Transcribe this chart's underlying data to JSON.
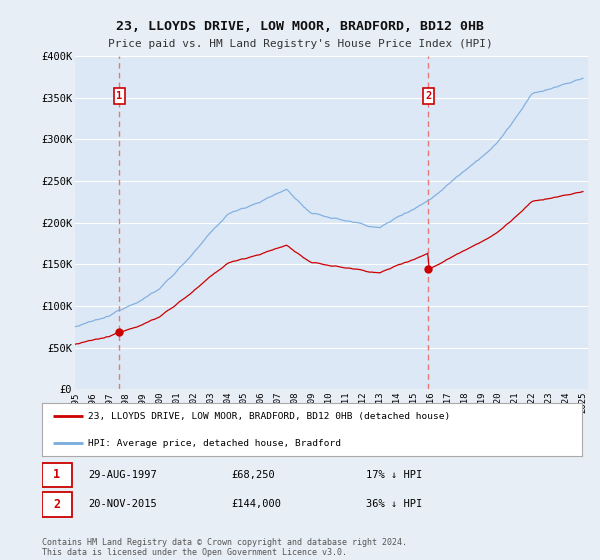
{
  "title": "23, LLOYDS DRIVE, LOW MOOR, BRADFORD, BD12 0HB",
  "subtitle": "Price paid vs. HM Land Registry's House Price Index (HPI)",
  "ylim": [
    0,
    400000
  ],
  "yticks": [
    0,
    50000,
    100000,
    150000,
    200000,
    250000,
    300000,
    350000,
    400000
  ],
  "ytick_labels": [
    "£0",
    "£50K",
    "£100K",
    "£150K",
    "£200K",
    "£250K",
    "£300K",
    "£350K",
    "£400K"
  ],
  "bg_color": "#e8eef5",
  "plot_bg_color": "#dce8f5",
  "grid_color": "#ffffff",
  "sale1_date": "29-AUG-1997",
  "sale1_price": 68250,
  "sale1_pct": "17%",
  "sale2_date": "20-NOV-2015",
  "sale2_price": 144000,
  "sale2_pct": "36%",
  "legend_label1": "23, LLOYDS DRIVE, LOW MOOR, BRADFORD, BD12 0HB (detached house)",
  "legend_label2": "HPI: Average price, detached house, Bradford",
  "footer": "Contains HM Land Registry data © Crown copyright and database right 2024.\nThis data is licensed under the Open Government Licence v3.0.",
  "red_line_color": "#cc0000",
  "blue_line_color": "#7aabdf",
  "marker_color": "#cc0000",
  "vline_color": "#e87878",
  "title_color": "#111111",
  "subtitle_color": "#333333",
  "sale1_year_f": 1997.625,
  "sale2_year_f": 2015.875
}
